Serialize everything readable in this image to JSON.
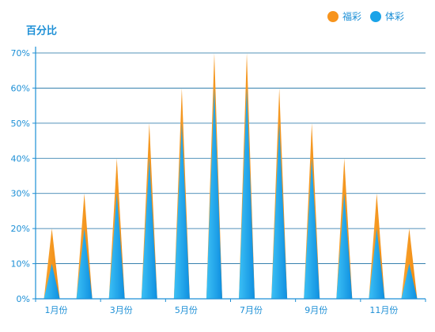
{
  "chart_data": {
    "type": "bar",
    "ylabel": "百分比",
    "x_tick_labels": [
      "1月份",
      "3月份",
      "5月份",
      "7月份",
      "9月份",
      "11月份"
    ],
    "y_tick_labels": [
      "0%",
      "10%",
      "20%",
      "30%",
      "40%",
      "50%",
      "60%",
      "70%"
    ],
    "ylim": [
      0,
      70
    ],
    "grid": true,
    "legend_position": "top-right",
    "series": [
      {
        "name": "福彩",
        "color": "#f7941d",
        "values": [
          20,
          30,
          40,
          50,
          60,
          70,
          70,
          60,
          50,
          40,
          30,
          20
        ]
      },
      {
        "name": "体彩",
        "color": "#1aa3e8",
        "values": [
          10,
          20,
          30,
          40,
          50,
          60,
          60,
          50,
          40,
          30,
          20,
          10
        ]
      }
    ]
  }
}
